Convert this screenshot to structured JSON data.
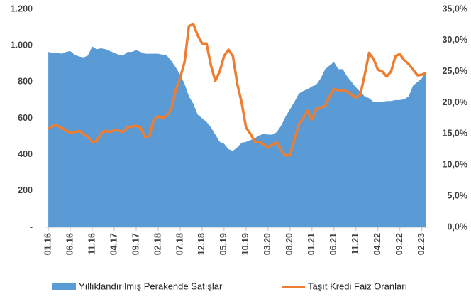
{
  "chart_data": {
    "type": "combo",
    "categories": [
      "01.16",
      null,
      null,
      null,
      null,
      "06.16",
      null,
      null,
      null,
      null,
      "11.16",
      null,
      null,
      null,
      null,
      "04.17",
      null,
      null,
      null,
      null,
      "09.17",
      null,
      null,
      null,
      null,
      "02.18",
      null,
      null,
      null,
      null,
      "07.18",
      null,
      null,
      null,
      null,
      "12.18",
      null,
      null,
      null,
      null,
      "05.19",
      null,
      null,
      null,
      null,
      "10.19",
      null,
      null,
      null,
      null,
      "03.20",
      null,
      null,
      null,
      null,
      "08.20",
      null,
      null,
      null,
      null,
      "01.21",
      null,
      null,
      null,
      null,
      "06.21",
      null,
      null,
      null,
      null,
      "11.21",
      null,
      null,
      null,
      null,
      "04.22",
      null,
      null,
      null,
      null,
      "09.22",
      null,
      null,
      null,
      null,
      "02.23",
      null
    ],
    "series": [
      {
        "name": "Yıllıklandırılmış Perakende Satışlar",
        "type": "area",
        "color": "#5b9bd5",
        "values": [
          965,
          960,
          960,
          955,
          965,
          970,
          950,
          940,
          935,
          945,
          995,
          980,
          985,
          980,
          970,
          960,
          950,
          945,
          965,
          965,
          975,
          965,
          955,
          955,
          955,
          955,
          950,
          945,
          915,
          880,
          840,
          790,
          720,
          680,
          620,
          600,
          580,
          550,
          510,
          470,
          460,
          430,
          420,
          440,
          465,
          470,
          480,
          490,
          505,
          515,
          510,
          510,
          525,
          560,
          610,
          650,
          690,
          735,
          750,
          760,
          775,
          785,
          820,
          870,
          890,
          910,
          870,
          870,
          830,
          800,
          770,
          745,
          720,
          710,
          690,
          690,
          690,
          695,
          695,
          700,
          700,
          705,
          720,
          780,
          800,
          820,
          860
        ]
      },
      {
        "name": "Taşıt Kredi Faiz Oranları",
        "type": "line",
        "color": "#ed7d31",
        "axis": "y2",
        "values": [
          15.8,
          16.3,
          16.3,
          16.0,
          15.5,
          15.2,
          15.3,
          15.5,
          15.0,
          14.5,
          13.7,
          13.8,
          15.0,
          15.5,
          15.3,
          15.6,
          15.5,
          15.3,
          16.0,
          16.2,
          16.3,
          16.0,
          14.5,
          14.6,
          17.3,
          17.8,
          17.5,
          18.0,
          19.0,
          22.0,
          24.0,
          26.5,
          32.3,
          32.6,
          30.8,
          29.5,
          29.5,
          26.0,
          23.5,
          25.0,
          27.5,
          28.5,
          27.5,
          23.0,
          20.0,
          16.0,
          15.0,
          13.7,
          13.7,
          13.3,
          12.8,
          13.3,
          13.6,
          12.3,
          11.5,
          11.6,
          14.0,
          16.5,
          17.5,
          18.7,
          17.2,
          19.0,
          19.2,
          19.5,
          21.0,
          22.2,
          22.0,
          22.0,
          21.8,
          21.3,
          20.8,
          21.3,
          24.5,
          28.0,
          27.0,
          25.3,
          25.0,
          24.2,
          25.0,
          27.5,
          27.8,
          26.8,
          26.2,
          25.3,
          24.4,
          24.5,
          24.8
        ]
      }
    ],
    "ylim": [
      0,
      1200
    ],
    "yticks": [
      {
        "value": 0,
        "label": "-"
      },
      200,
      400,
      600,
      800,
      {
        "value": 1000,
        "label": "1.000"
      },
      {
        "value": 1200,
        "label": "1.200"
      }
    ],
    "y2lim": [
      0,
      35
    ],
    "y2ticks": [
      {
        "value": 0,
        "label": "0,0%"
      },
      {
        "value": 5,
        "label": "5,0%"
      },
      {
        "value": 10,
        "label": "10,0%"
      },
      {
        "value": 15,
        "label": "15,0%"
      },
      {
        "value": 20,
        "label": "20,0%"
      },
      {
        "value": 25,
        "label": "25,0%"
      },
      {
        "value": 30,
        "label": "30,0%"
      },
      {
        "value": 35,
        "label": "35,0%"
      }
    ],
    "legend": "bottom"
  }
}
